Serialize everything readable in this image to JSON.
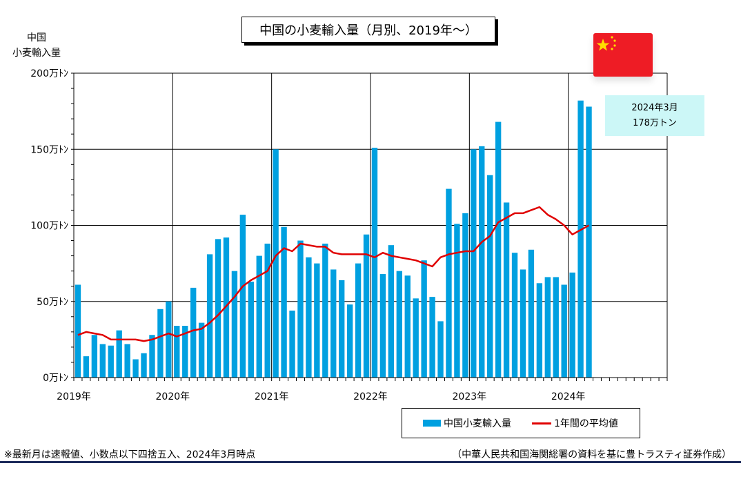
{
  "title": "中国の小麦輸入量（月別、2019年～）",
  "y_axis_title_line1": "中国",
  "y_axis_title_line2": "小麦輸入量",
  "callout_line1": "2024年3月",
  "callout_line2": "178万トン",
  "legend_bar": "中国小麦輸入量",
  "legend_line": "1年間の平均値",
  "footnote": "※最新月は速報値、小数点以下四捨五入、2024年3月時点",
  "source": "（中華人民共和国海関総署の資料を基に豊トラスティ証券作成）",
  "colors": {
    "bar": "#00a0e0",
    "line": "#e00000",
    "callout_bg": "#ccf7f7",
    "flag": "#ee1c25",
    "star": "#ffde00"
  },
  "chart_data": {
    "type": "bar",
    "title": "中国の小麦輸入量（月別、2019年～）",
    "ylabel": "中国 小麦輸入量",
    "y_unit": "万トン",
    "ylim": [
      0,
      200
    ],
    "y_ticks": [
      {
        "value": 0,
        "label": "0万ﾄﾝ"
      },
      {
        "value": 50,
        "label": "50万ﾄﾝ"
      },
      {
        "value": 100,
        "label": "100万ﾄﾝ"
      },
      {
        "value": 150,
        "label": "150万ﾄﾝ"
      },
      {
        "value": 200,
        "label": "200万ﾄﾝ"
      }
    ],
    "year_labels": [
      "2019年",
      "2020年",
      "2021年",
      "2022年",
      "2023年",
      "2024年"
    ],
    "month_slots": 72,
    "grid": true,
    "legend_position": "bottom-right",
    "series": [
      {
        "name": "中国小麦輸入量",
        "type": "bar",
        "values": [
          61,
          14,
          28,
          22,
          21,
          31,
          22,
          12,
          16,
          28,
          45,
          50,
          34,
          34,
          59,
          36,
          81,
          91,
          92,
          70,
          107,
          63,
          80,
          88,
          150,
          99,
          44,
          90,
          79,
          75,
          88,
          71,
          64,
          48,
          75,
          94,
          151,
          68,
          87,
          70,
          67,
          52,
          77,
          53,
          37,
          124,
          101,
          108,
          150,
          152,
          133,
          168,
          115,
          82,
          71,
          84,
          62,
          66,
          66,
          61,
          69,
          182,
          178
        ]
      },
      {
        "name": "1年間の平均値",
        "type": "line",
        "values": [
          28,
          30,
          29,
          28,
          25,
          25,
          25,
          25,
          24,
          25,
          27,
          29,
          27,
          29,
          31,
          32,
          36,
          41,
          47,
          53,
          60,
          64,
          67,
          70,
          80,
          85,
          83,
          88,
          87,
          86,
          86,
          82,
          81,
          81,
          81,
          81,
          79,
          82,
          80,
          79,
          78,
          77,
          75,
          73,
          79,
          81,
          82,
          83,
          83,
          89,
          93,
          102,
          105,
          108,
          108,
          110,
          112,
          107,
          104,
          100,
          94,
          97,
          100
        ]
      }
    ]
  }
}
